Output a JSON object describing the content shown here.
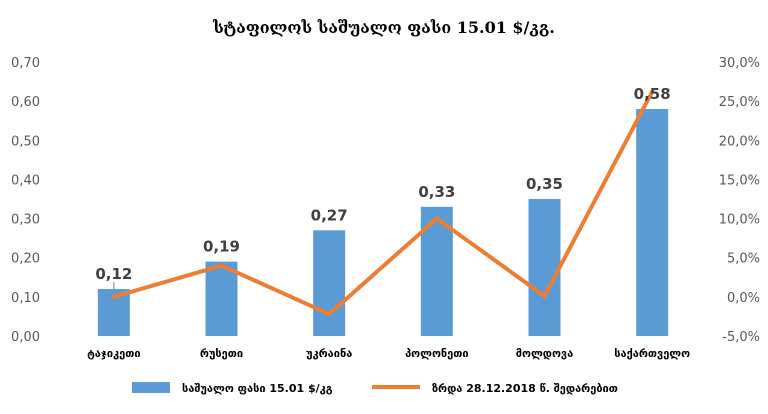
{
  "chart_data": {
    "type": "bar",
    "title": "სტაფილოს საშუალო ფასი 15.01 $/კგ.",
    "categories": [
      "ტაჯიკეთი",
      "რუსეთი",
      "უკრაინა",
      "პოლონეთი",
      "მოლდოვა",
      "საქართველო"
    ],
    "series": [
      {
        "name": "საშუალო ფასი 15.01 $/კგ",
        "type": "bar",
        "axis": "left",
        "color": "#5b9bd5",
        "values": [
          0.12,
          0.19,
          0.27,
          0.33,
          0.35,
          0.58
        ],
        "labels": [
          "0,12",
          "0,19",
          "0,27",
          "0,33",
          "0,35",
          "0,58"
        ]
      },
      {
        "name": "ზრდა 28.12.2018 წ. შედარებით",
        "type": "line",
        "axis": "right",
        "color": "#ed7d31",
        "values": [
          0.0,
          4.0,
          -2.2,
          10.0,
          0.1,
          26.2
        ]
      }
    ],
    "y_left": {
      "min": 0,
      "max": 0.7,
      "ticks": [
        0,
        0.1,
        0.2,
        0.3,
        0.4,
        0.5,
        0.6,
        0.7
      ],
      "tick_labels": [
        "0,00",
        "0,10",
        "0,20",
        "0,30",
        "0,40",
        "0,50",
        "0,60",
        "0,70"
      ]
    },
    "y_right": {
      "min": -5,
      "max": 30,
      "ticks": [
        -5,
        0,
        5,
        10,
        15,
        20,
        25,
        30
      ],
      "tick_labels": [
        "-5,0%",
        "0,0%",
        "5,0%",
        "10,0%",
        "15,0%",
        "20,0%",
        "25,0%",
        "30,0%"
      ]
    },
    "grid": false,
    "legend": "bottom"
  }
}
